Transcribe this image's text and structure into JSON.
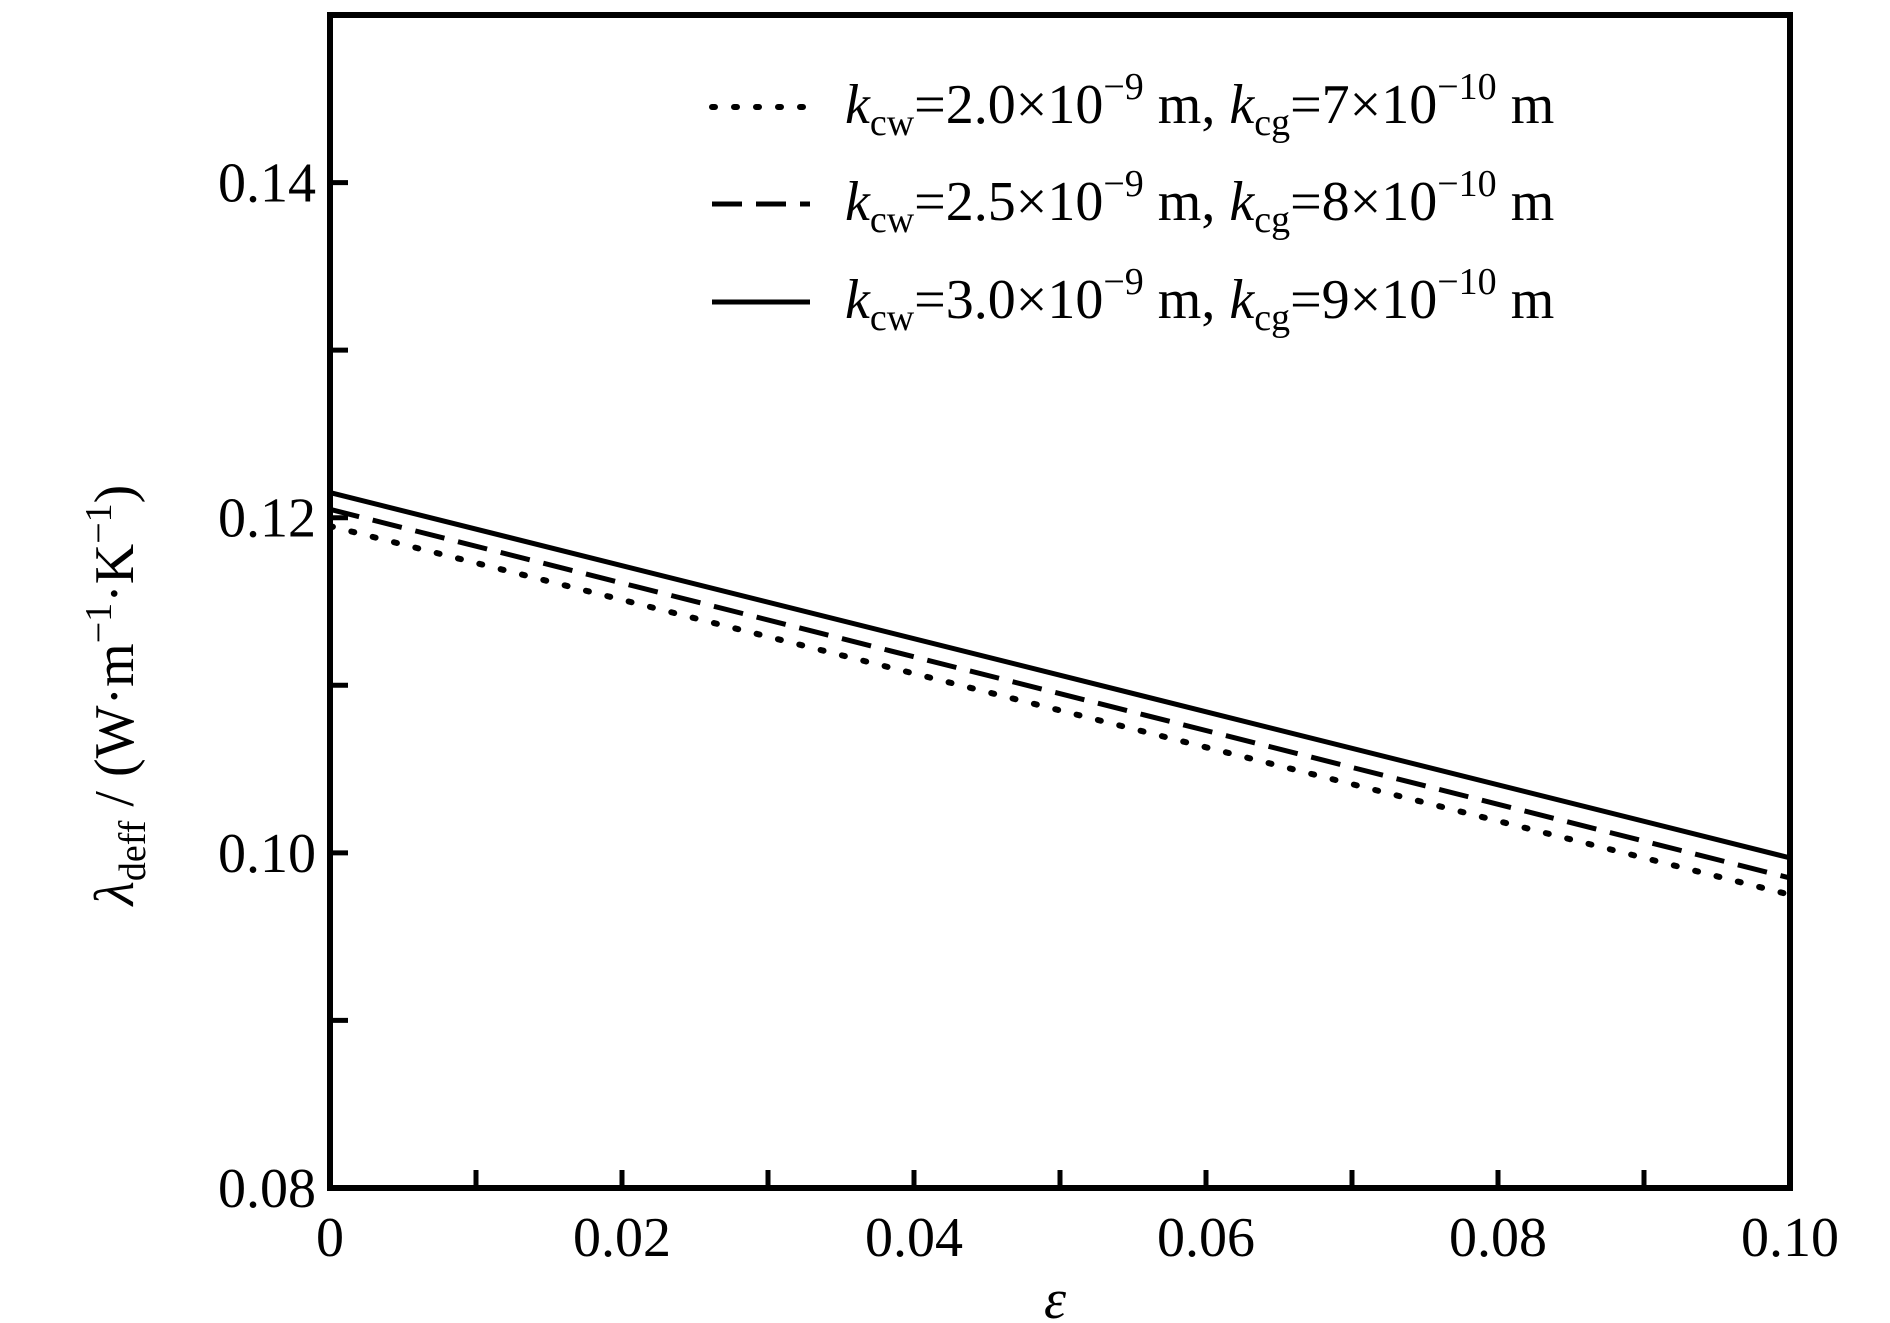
{
  "chart_data": {
    "type": "line",
    "title": "",
    "xlabel": "ε",
    "ylabel": {
      "symbol": "λ",
      "subscript": "deff",
      "unit_open": " / (W·m",
      "unit_exp1": "−1",
      "unit_mid": "·K",
      "unit_exp2": "−1",
      "unit_close": ")"
    },
    "xlim": [
      0,
      0.1
    ],
    "ylim": [
      0.08,
      0.15
    ],
    "xticks_major": [
      0,
      0.02,
      0.04,
      0.06,
      0.08,
      0.1
    ],
    "xtick_labels": [
      "0",
      "0.02",
      "0.04",
      "0.06",
      "0.08",
      "0.10"
    ],
    "xticks_minor": [
      0.01,
      0.03,
      0.05,
      0.07,
      0.09
    ],
    "yticks_major": [
      0.08,
      0.1,
      0.12,
      0.14
    ],
    "ytick_labels": [
      "0.08",
      "0.10",
      "0.12",
      "0.14"
    ],
    "yticks_minor": [
      0.09,
      0.11,
      0.13
    ],
    "grid": false,
    "legend_position": "top-right",
    "series": [
      {
        "style": "dotted",
        "legend": {
          "k": "k",
          "sub1": "cw",
          "val1": "=2.0×10",
          "exp1": "−9",
          "mid": " m, ",
          "k2": "k",
          "sub2": "cg",
          "val2": "=7×10",
          "exp2": "−10",
          "end": " m"
        },
        "x": [
          0,
          0.1
        ],
        "y": [
          0.1195,
          0.0975
        ]
      },
      {
        "style": "dashed",
        "legend": {
          "k": "k",
          "sub1": "cw",
          "val1": "=2.5×10",
          "exp1": "−9",
          "mid": " m, ",
          "k2": "k",
          "sub2": "cg",
          "val2": "=8×10",
          "exp2": "−10",
          "end": " m"
        },
        "x": [
          0,
          0.1
        ],
        "y": [
          0.1205,
          0.0985
        ]
      },
      {
        "style": "solid",
        "legend": {
          "k": "k",
          "sub1": "cw",
          "val1": "=3.0×10",
          "exp1": "−9",
          "mid": " m, ",
          "k2": "k",
          "sub2": "cg",
          "val2": "=9×10",
          "exp2": "−10",
          "end": " m"
        },
        "x": [
          0,
          0.1
        ],
        "y": [
          0.1215,
          0.0997
        ]
      }
    ]
  }
}
